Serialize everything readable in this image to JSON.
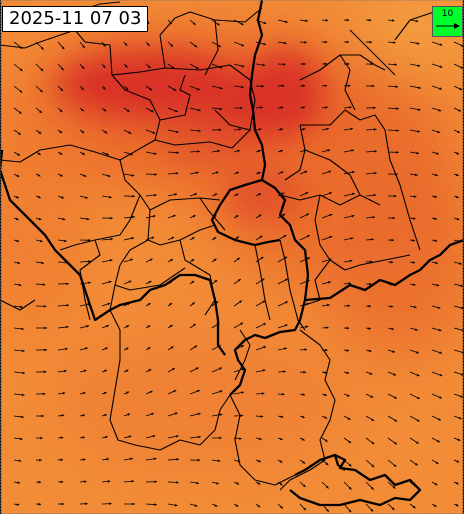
{
  "map": {
    "timestamp": "2025-11 07 03",
    "legend": {
      "value": "10",
      "color": "#00ff2a"
    },
    "colors": {
      "base": "#f28c37",
      "warm": "#ea6b2b",
      "hot": "#d93128",
      "border": "#000000",
      "arrow": "#000000",
      "frame": "#777777"
    }
  }
}
